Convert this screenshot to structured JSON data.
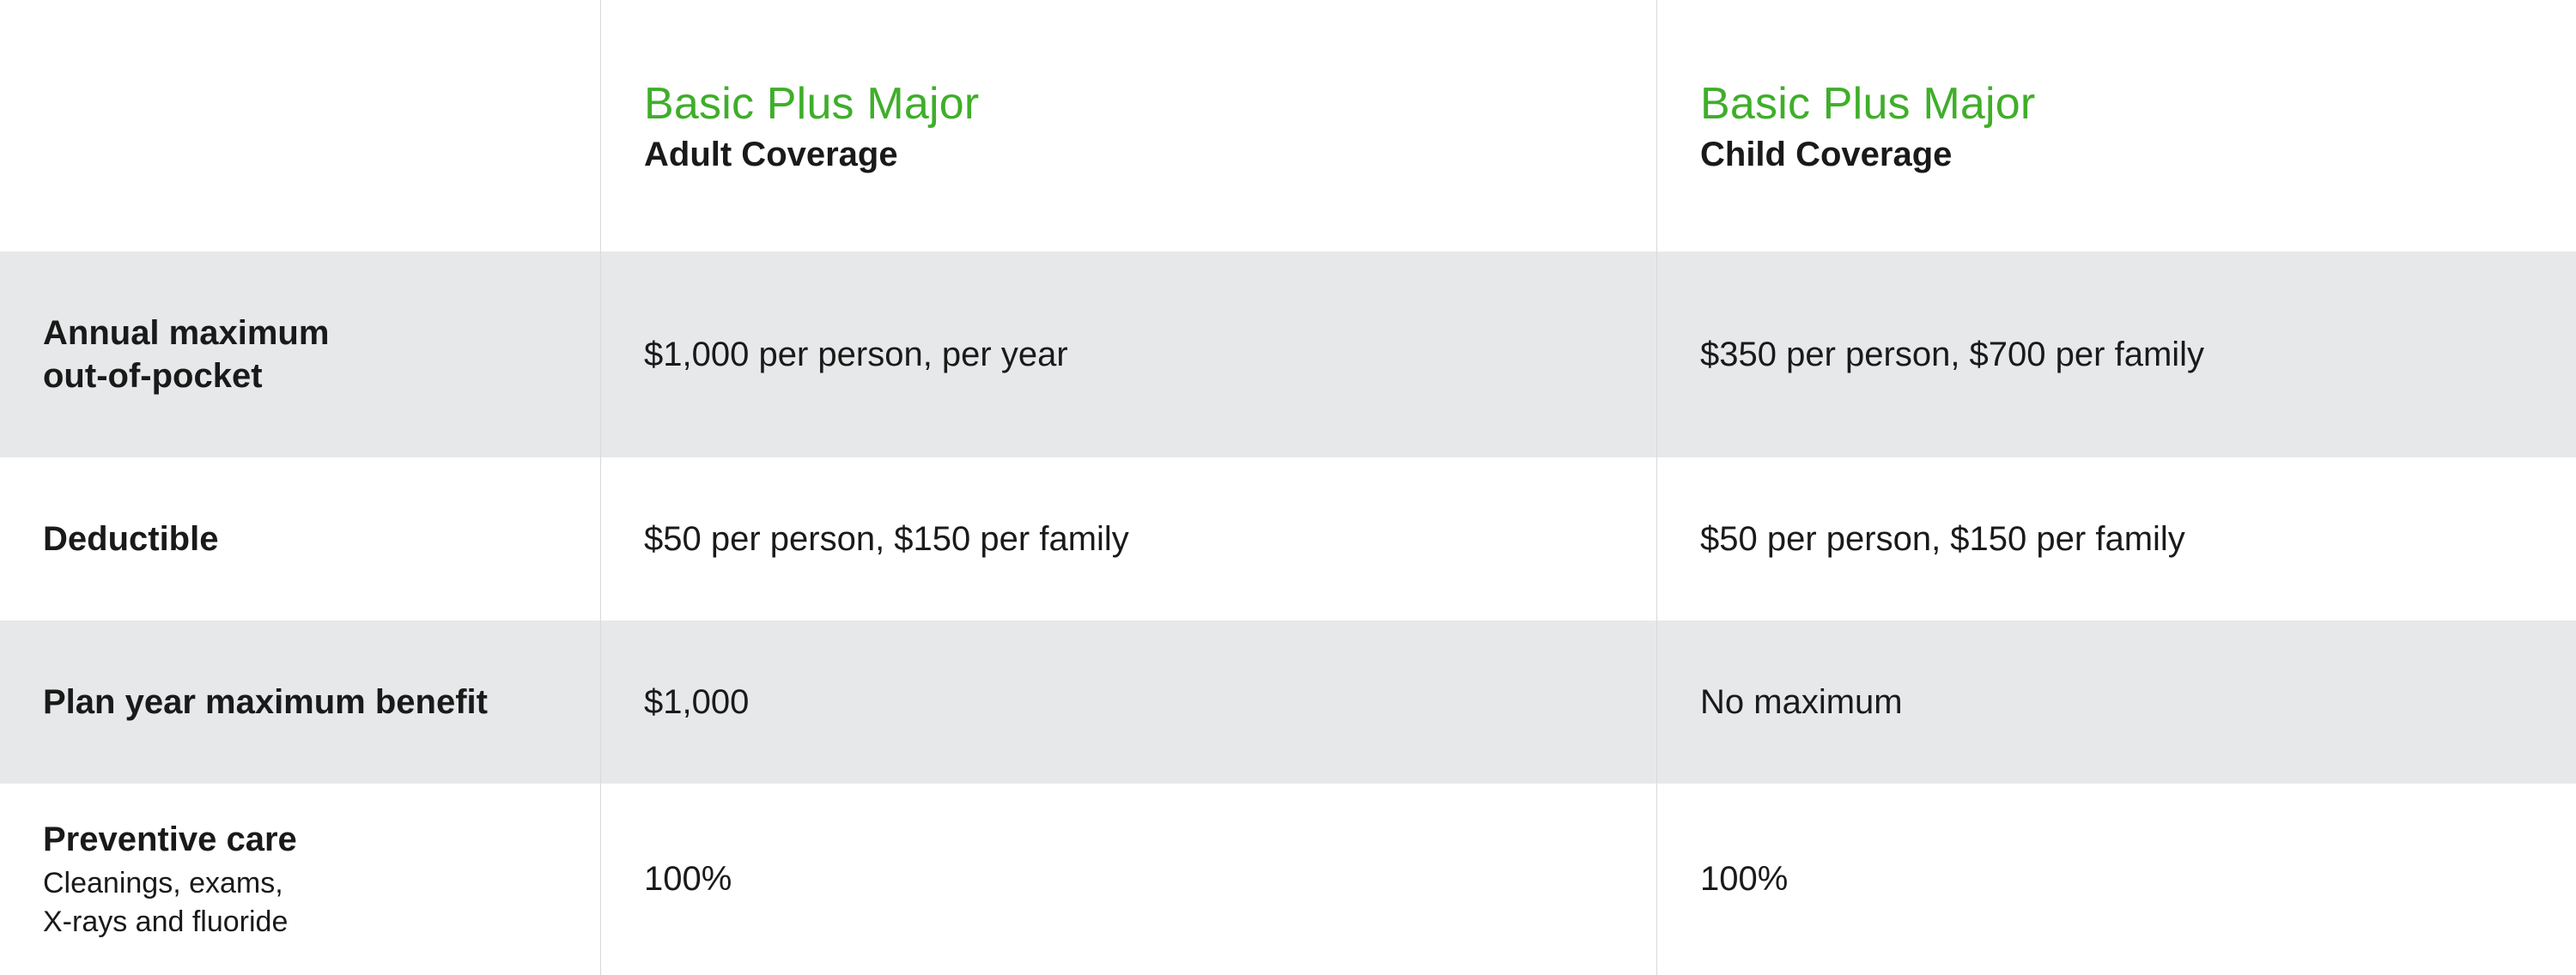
{
  "colors": {
    "accent_green": "#3fae2a",
    "text": "#1a1a1a",
    "shaded_bg": "#e7e8e9",
    "border": "#d9d9d9",
    "background": "#ffffff"
  },
  "typography": {
    "plan_title_fontsize": 52,
    "plan_sub_fontsize": 40,
    "row_label_fontsize": 40,
    "row_sublabel_fontsize": 34,
    "value_fontsize": 40
  },
  "columns": [
    {
      "plan_title": "",
      "plan_sub": ""
    },
    {
      "plan_title": "Basic Plus Major",
      "plan_sub": "Adult Coverage"
    },
    {
      "plan_title": "Basic Plus Major",
      "plan_sub": "Child Coverage"
    }
  ],
  "rows": [
    {
      "key": "annual",
      "shaded": true,
      "label_line1": "Annual maximum",
      "label_line2": "out-of-pocket",
      "sublabel": "",
      "values": [
        "$1,000 per person, per year",
        "$350 per person, $700 per family"
      ]
    },
    {
      "key": "deductible",
      "shaded": false,
      "label_line1": "Deductible",
      "label_line2": "",
      "sublabel": "",
      "values": [
        "$50 per person, $150 per family",
        "$50 per person, $150 per family"
      ]
    },
    {
      "key": "planmax",
      "shaded": true,
      "label_line1": "Plan year maximum benefit",
      "label_line2": "",
      "sublabel": "",
      "values": [
        "$1,000",
        "No maximum"
      ]
    },
    {
      "key": "preventive",
      "shaded": false,
      "label_line1": "Preventive care",
      "label_line2": "",
      "sublabel_line1": "Cleanings, exams,",
      "sublabel_line2": "X-rays and fluoride",
      "values": [
        "100%",
        "100%"
      ]
    }
  ]
}
